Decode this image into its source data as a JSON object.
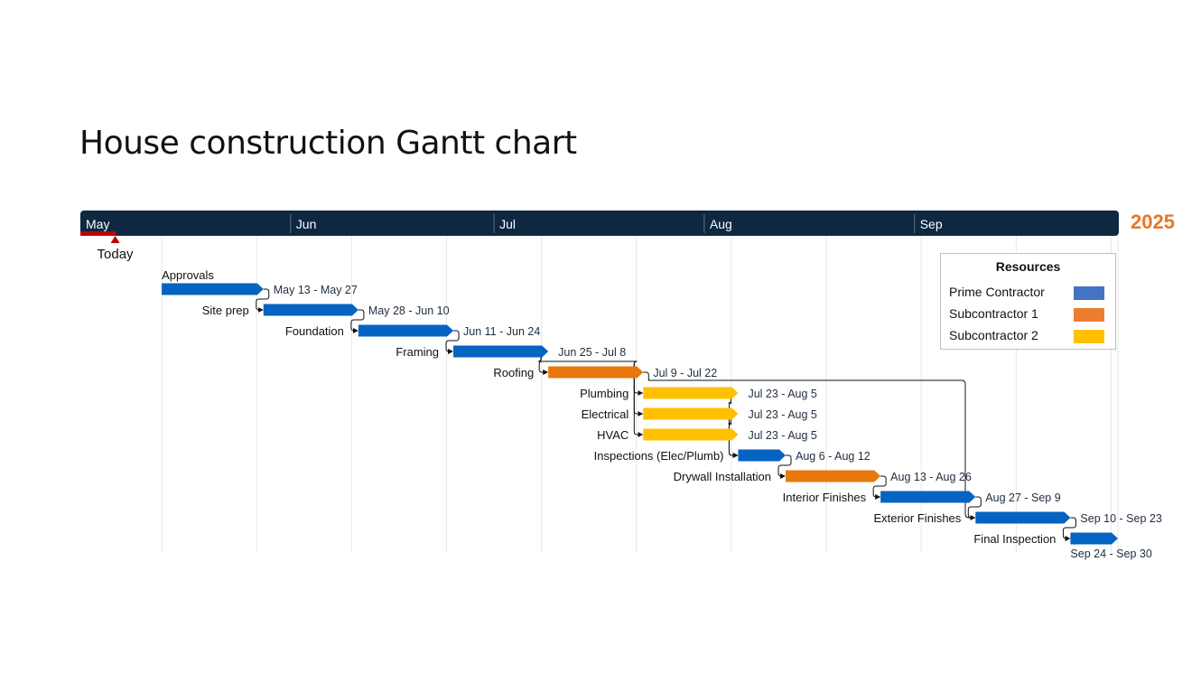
{
  "title": "House construction Gantt chart",
  "year": "2025",
  "colors": {
    "header": "#0e2841",
    "prime_bar": "#0563c1",
    "sub1_bar": "#e8780c",
    "sub2_bar": "#ffc000",
    "today_marker": "#c00000",
    "year_text": "#e87722"
  },
  "legend": {
    "title": "Resources",
    "items": [
      {
        "label": "Prime Contractor",
        "color": "#4472c4"
      },
      {
        "label": "Subcontractor 1",
        "color": "#ed7d31"
      },
      {
        "label": "Subcontractor 2",
        "color": "#ffc000"
      }
    ]
  },
  "chart_data": {
    "type": "gantt",
    "title": "House construction Gantt chart",
    "year": "2025",
    "x_range": [
      "2025-05-01",
      "2025-09-30"
    ],
    "months": [
      {
        "label": "May",
        "start": "2025-05-01"
      },
      {
        "label": "Jun",
        "start": "2025-06-01"
      },
      {
        "label": "Jul",
        "start": "2025-07-01"
      },
      {
        "label": "Aug",
        "start": "2025-08-01"
      },
      {
        "label": "Sep",
        "start": "2025-09-01"
      }
    ],
    "today": {
      "label": "Today",
      "date": "2025-05-06"
    },
    "gridlines": true,
    "legend_position": "top-right",
    "tasks": [
      {
        "name": "Approvals",
        "start": "2025-05-13",
        "end": "2025-05-27",
        "date_label": "May 13 - May 27",
        "resource": "Prime Contractor"
      },
      {
        "name": "Site prep",
        "start": "2025-05-28",
        "end": "2025-06-10",
        "date_label": "May 28 - Jun 10",
        "resource": "Prime Contractor"
      },
      {
        "name": "Foundation",
        "start": "2025-06-11",
        "end": "2025-06-24",
        "date_label": "Jun 11 - Jun 24",
        "resource": "Prime Contractor"
      },
      {
        "name": "Framing",
        "start": "2025-06-25",
        "end": "2025-07-08",
        "date_label": "Jun 25 - Jul 8",
        "resource": "Prime Contractor"
      },
      {
        "name": "Roofing",
        "start": "2025-07-09",
        "end": "2025-07-22",
        "date_label": "Jul 9 - Jul 22",
        "resource": "Subcontractor 1"
      },
      {
        "name": "Plumbing",
        "start": "2025-07-23",
        "end": "2025-08-05",
        "date_label": "Jul 23 - Aug 5",
        "resource": "Subcontractor 2"
      },
      {
        "name": "Electrical",
        "start": "2025-07-23",
        "end": "2025-08-05",
        "date_label": "Jul 23 - Aug 5",
        "resource": "Subcontractor 2"
      },
      {
        "name": "HVAC",
        "start": "2025-07-23",
        "end": "2025-08-05",
        "date_label": "Jul 23 - Aug 5",
        "resource": "Subcontractor 2"
      },
      {
        "name": "Inspections (Elec/Plumb)",
        "start": "2025-08-06",
        "end": "2025-08-12",
        "date_label": "Aug 6 - Aug 12",
        "resource": "Prime Contractor"
      },
      {
        "name": "Drywall Installation",
        "start": "2025-08-13",
        "end": "2025-08-26",
        "date_label": "Aug 13 - Aug 26",
        "resource": "Subcontractor 1"
      },
      {
        "name": "Interior Finishes",
        "start": "2025-08-27",
        "end": "2025-09-09",
        "date_label": "Aug 27 - Sep 9",
        "resource": "Prime Contractor"
      },
      {
        "name": "Exterior Finishes",
        "start": "2025-09-10",
        "end": "2025-09-23",
        "date_label": "Sep 10 - Sep 23",
        "resource": "Prime Contractor"
      },
      {
        "name": "Final Inspection",
        "start": "2025-09-24",
        "end": "2025-09-30",
        "date_label": "Sep 24 - Sep 30",
        "resource": "Prime Contractor"
      }
    ],
    "dependencies": [
      [
        "Approvals",
        "Site prep"
      ],
      [
        "Site prep",
        "Foundation"
      ],
      [
        "Foundation",
        "Framing"
      ],
      [
        "Framing",
        "Roofing"
      ],
      [
        "Framing",
        "Plumbing"
      ],
      [
        "Framing",
        "Electrical"
      ],
      [
        "Framing",
        "HVAC"
      ],
      [
        "Plumbing",
        "Inspections (Elec/Plumb)"
      ],
      [
        "Electrical",
        "Inspections (Elec/Plumb)"
      ],
      [
        "Inspections (Elec/Plumb)",
        "Drywall Installation"
      ],
      [
        "Drywall Installation",
        "Interior Finishes"
      ],
      [
        "Interior Finishes",
        "Exterior Finishes"
      ],
      [
        "Roofing",
        "Exterior Finishes"
      ],
      [
        "Exterior Finishes",
        "Final Inspection"
      ]
    ]
  }
}
